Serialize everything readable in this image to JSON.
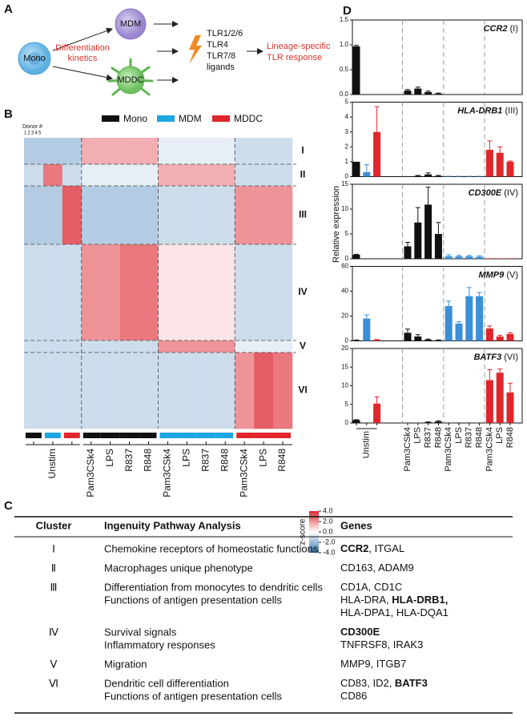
{
  "panel_labels": [
    "A",
    "B",
    "C",
    "D"
  ],
  "schematic": {
    "mono": "Mono",
    "mdm": "MDM",
    "mddc": "MDDC",
    "kinetics": [
      "Differentiation",
      "kinetics"
    ],
    "ligands": [
      "TLR1/2/6",
      "TLR4",
      "TLR7/8",
      "ligands"
    ],
    "response": [
      "Lineage-specific",
      "TLR response"
    ]
  },
  "bar_ylabel": "Relative expression",
  "chart_data": [
    {
      "type": "heatmap",
      "legend": [
        {
          "name": "Mono",
          "color": "#111111"
        },
        {
          "name": "MDM",
          "color": "#1aa7e0"
        },
        {
          "name": "MDDC",
          "color": "#e0262b"
        }
      ],
      "donor_label": "Donor #",
      "donors": [
        1,
        2,
        3,
        4,
        5
      ],
      "rows": [
        "I",
        "II",
        "III",
        "IV",
        "V",
        "VI"
      ],
      "categories": [
        null,
        "Unstim",
        null,
        "Pam3CSk4",
        "LPS",
        "R837",
        "R848",
        "Pam3CSk4",
        "LPS",
        "R837",
        "R848",
        "Pam3CSk4",
        "LPS",
        "R848"
      ],
      "column_group": [
        0,
        1,
        2,
        0,
        0,
        0,
        0,
        1,
        1,
        1,
        1,
        2,
        2,
        2
      ],
      "values": [
        [
          -1.5,
          -1.5,
          -1.5,
          1.5,
          1.5,
          1.5,
          1.5,
          -0.5,
          -0.5,
          -0.5,
          -0.5,
          -1,
          -1,
          -1
        ],
        [
          -1,
          2.5,
          -1,
          -0.5,
          -0.5,
          -0.5,
          -0.5,
          1.5,
          1.5,
          1.5,
          1.5,
          -1,
          -1,
          -1
        ],
        [
          -1.5,
          -1.5,
          3,
          -1.5,
          -1.5,
          -1.5,
          -1.5,
          -1,
          -1,
          -1,
          -1,
          2,
          2,
          2
        ],
        [
          -1,
          -1,
          -1,
          2,
          2,
          2.5,
          2.5,
          0.5,
          0.5,
          0.5,
          0.5,
          -1,
          -1,
          -1
        ],
        [
          -1,
          -1,
          -1,
          -1,
          -1,
          -1,
          -1,
          2,
          2,
          2,
          2,
          -0.5,
          -0.5,
          -0.5
        ],
        [
          -1,
          -1,
          -1,
          -1,
          -1,
          -1,
          -1,
          -1,
          -1,
          -1,
          -1,
          2,
          3,
          2.5
        ]
      ],
      "zlim": [
        -4,
        4
      ],
      "zticks": [
        {
          "value": 4,
          "label": "4.0"
        },
        {
          "value": 2,
          "label": "2.0"
        },
        {
          "value": 0,
          "label": "0.0"
        },
        {
          "value": -2,
          "label": "-2.0"
        },
        {
          "value": -4,
          "label": "-4.0"
        }
      ],
      "zlabel": "z-score"
    },
    {
      "type": "bar",
      "gene": "CCR2",
      "cluster": "(I)",
      "values": [
        0.97,
        0,
        0,
        0.08,
        0.12,
        0.05,
        0.02,
        0,
        0,
        0,
        0,
        0,
        0,
        0
      ],
      "errors": [
        0.02,
        0,
        0,
        0.02,
        0.03,
        0.02,
        0.01,
        0,
        0,
        0,
        0,
        0,
        0,
        0
      ],
      "colors": [
        "#111",
        "#3a8fd6",
        "#e0262b",
        "#111",
        "#111",
        "#111",
        "#111",
        "#3a8fd6",
        "#3a8fd6",
        "#3a8fd6",
        "#3a8fd6",
        "#e0262b",
        "#e0262b",
        "#e0262b"
      ],
      "ylim": [
        0,
        1.5
      ],
      "yticks": [
        {
          "value": 0,
          "label": "0.0"
        },
        0.5,
        {
          "value": 1,
          "label": "1.0"
        },
        1.5
      ]
    },
    {
      "type": "bar",
      "gene": "HLA-DRB1",
      "cluster": "(III)",
      "values": [
        1.0,
        0.3,
        3.0,
        0.02,
        0.05,
        0.15,
        0.05,
        0.05,
        0.05,
        0.05,
        0.05,
        1.8,
        1.6,
        1.0
      ],
      "errors": [
        0,
        0.5,
        1.7,
        0,
        0.03,
        0.1,
        0.03,
        0,
        0,
        0,
        0,
        0.6,
        0.4,
        0.05
      ],
      "colors": [
        "#111",
        "#3a8fd6",
        "#e0262b",
        "#111",
        "#111",
        "#111",
        "#111",
        "#3a8fd6",
        "#3a8fd6",
        "#3a8fd6",
        "#3a8fd6",
        "#e0262b",
        "#e0262b",
        "#e0262b"
      ],
      "ylim": [
        0,
        5
      ],
      "yticks": [
        0,
        1,
        2,
        3,
        4,
        5
      ]
    },
    {
      "type": "bar",
      "gene": "CD300E",
      "cluster": "(IV)",
      "values": [
        0.8,
        0,
        0,
        2.5,
        7.3,
        10.9,
        5.0,
        0.5,
        0.5,
        0.5,
        0.4,
        0.1,
        0.1,
        0.1
      ],
      "errors": [
        0.1,
        0,
        0,
        0.8,
        3.0,
        3.5,
        2.3,
        0.3,
        0.2,
        0.2,
        0.2,
        0,
        0,
        0
      ],
      "colors": [
        "#111",
        "#3a8fd6",
        "#e0262b",
        "#111",
        "#111",
        "#111",
        "#111",
        "#3a8fd6",
        "#3a8fd6",
        "#3a8fd6",
        "#3a8fd6",
        "#e0262b",
        "#e0262b",
        "#e0262b"
      ],
      "ylim": [
        0,
        15
      ],
      "yticks": [
        0,
        5,
        10,
        15
      ]
    },
    {
      "type": "bar",
      "gene": "MMP9",
      "cluster": "(V)",
      "values": [
        0.5,
        18,
        0.8,
        6.5,
        3.5,
        1,
        0.5,
        28,
        14,
        36,
        36,
        10,
        3.5,
        5.5
      ],
      "errors": [
        0.2,
        3,
        0.3,
        3,
        1.5,
        0.5,
        0.3,
        4,
        1.5,
        7,
        3,
        2,
        1,
        1
      ],
      "colors": [
        "#111",
        "#3a8fd6",
        "#e0262b",
        "#111",
        "#111",
        "#111",
        "#111",
        "#3a8fd6",
        "#3a8fd6",
        "#3a8fd6",
        "#3a8fd6",
        "#e0262b",
        "#e0262b",
        "#e0262b"
      ],
      "ylim": [
        0,
        60
      ],
      "yticks": [
        0,
        20,
        40,
        60
      ]
    },
    {
      "type": "bar",
      "gene": "BATF3",
      "cluster": "(VI)",
      "categories": [
        null,
        "Unstim",
        null,
        "Pam3CSk4",
        "LPS",
        "R837",
        "R848",
        "Pam3CSk4",
        "LPS",
        "R837",
        "R848",
        "Pam3CSk4",
        "LPS",
        "R848"
      ],
      "values": [
        0.8,
        0,
        5.2,
        0.1,
        0.1,
        0.2,
        0.4,
        0,
        0,
        0,
        0,
        11.5,
        13.5,
        8.2
      ],
      "errors": [
        0.1,
        0,
        1.8,
        0,
        0,
        0.1,
        0.2,
        0,
        0,
        0,
        0,
        2.8,
        1,
        2.5
      ],
      "colors": [
        "#111",
        "#3a8fd6",
        "#e0262b",
        "#111",
        "#111",
        "#111",
        "#111",
        "#3a8fd6",
        "#3a8fd6",
        "#3a8fd6",
        "#3a8fd6",
        "#e0262b",
        "#e0262b",
        "#e0262b"
      ],
      "ylim": [
        0,
        20
      ],
      "yticks": [
        0,
        5,
        10,
        15,
        20
      ]
    }
  ],
  "table": {
    "headers": [
      "Cluster",
      "Ingenuity Pathway Analysis",
      "Genes"
    ],
    "rows": [
      {
        "cluster": "Ⅰ",
        "pathways": [
          "Chemokine receptors of homeostatic functions"
        ],
        "genes": [
          [
            {
              "text": "CCR2",
              "bold": true
            },
            {
              "text": ", ITGAL"
            }
          ]
        ]
      },
      {
        "cluster": "Ⅱ",
        "pathways": [
          "Macrophages unique phenotype"
        ],
        "genes": [
          [
            {
              "text": "CD163, ADAM9"
            }
          ]
        ]
      },
      {
        "cluster": "Ⅲ",
        "pathways": [
          "Differentiation from monocytes to dendritic cells",
          "Functions of antigen presentation cells"
        ],
        "genes": [
          [
            {
              "text": "CD1A, CD1C"
            }
          ],
          [
            {
              "text": "HLA-DRA, "
            },
            {
              "text": "HLA-DRB1,",
              "bold": true
            }
          ],
          [
            {
              "text": "HLA-DPA1, HLA-DQA1"
            }
          ]
        ]
      },
      {
        "cluster": "Ⅳ",
        "pathways": [
          "Survival signals",
          "Inflammatory responses"
        ],
        "genes": [
          [
            {
              "text": "CD300E",
              "bold": true
            }
          ],
          [
            {
              "text": "TNFRSF8, IRAK3"
            }
          ]
        ]
      },
      {
        "cluster": "Ⅴ",
        "pathways": [
          "Migration"
        ],
        "genes": [
          [
            {
              "text": "MMP9, ITGB7"
            }
          ]
        ]
      },
      {
        "cluster": "Ⅵ",
        "pathways": [
          "Dendritic cell differentiation",
          "Functions of antigen presentation cells"
        ],
        "genes": [
          [
            {
              "text": "CD83, ID2, "
            },
            {
              "text": "BATF3",
              "bold": true
            }
          ],
          [
            {
              "text": "CD86"
            }
          ]
        ]
      }
    ]
  }
}
